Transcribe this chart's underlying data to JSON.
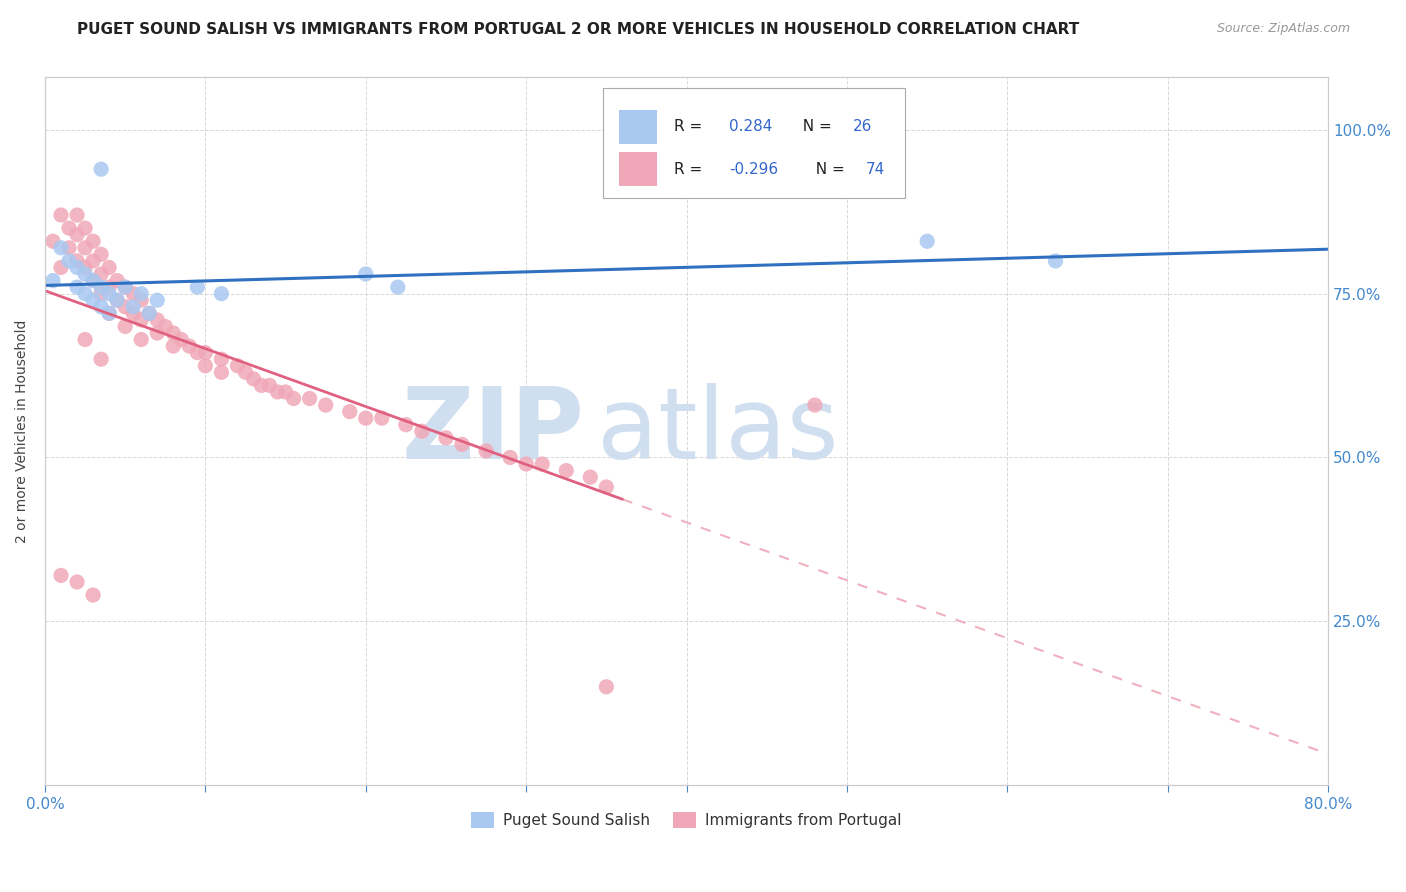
{
  "title": "PUGET SOUND SALISH VS IMMIGRANTS FROM PORTUGAL 2 OR MORE VEHICLES IN HOUSEHOLD CORRELATION CHART",
  "source": "Source: ZipAtlas.com",
  "ylabel": "2 or more Vehicles in Household",
  "xmin": 0.0,
  "xmax": 0.8,
  "ymin": 0.0,
  "ymax": 1.08,
  "yticks": [
    0.25,
    0.5,
    0.75,
    1.0
  ],
  "ytick_labels": [
    "25.0%",
    "50.0%",
    "75.0%",
    "100.0%"
  ],
  "blue_color": "#a8c8f0",
  "pink_color": "#f0a8b8",
  "blue_line_color": "#3070c0",
  "pink_line_color": "#e06080",
  "pink_dash_color": "#f0b0c0",
  "watermark_zip": "ZIP",
  "watermark_atlas": "atlas",
  "watermark_color": "#d0dff0",
  "blue_x": [
    0.005,
    0.01,
    0.015,
    0.02,
    0.02,
    0.025,
    0.025,
    0.03,
    0.03,
    0.035,
    0.035,
    0.04,
    0.04,
    0.045,
    0.05,
    0.055,
    0.06,
    0.065,
    0.07,
    0.095,
    0.11,
    0.2,
    0.22,
    0.55,
    0.63,
    0.035
  ],
  "blue_y": [
    0.77,
    0.82,
    0.8,
    0.79,
    0.76,
    0.78,
    0.75,
    0.77,
    0.74,
    0.76,
    0.73,
    0.75,
    0.72,
    0.74,
    0.76,
    0.73,
    0.75,
    0.72,
    0.74,
    0.76,
    0.75,
    0.78,
    0.76,
    0.83,
    0.8,
    0.94
  ],
  "pink_x": [
    0.005,
    0.01,
    0.01,
    0.015,
    0.015,
    0.02,
    0.02,
    0.02,
    0.025,
    0.025,
    0.025,
    0.03,
    0.03,
    0.03,
    0.035,
    0.035,
    0.035,
    0.04,
    0.04,
    0.045,
    0.045,
    0.05,
    0.05,
    0.055,
    0.055,
    0.06,
    0.06,
    0.065,
    0.07,
    0.07,
    0.075,
    0.08,
    0.08,
    0.085,
    0.09,
    0.095,
    0.1,
    0.1,
    0.11,
    0.11,
    0.12,
    0.125,
    0.13,
    0.135,
    0.14,
    0.145,
    0.15,
    0.155,
    0.165,
    0.175,
    0.19,
    0.2,
    0.21,
    0.225,
    0.235,
    0.25,
    0.26,
    0.275,
    0.29,
    0.3,
    0.31,
    0.325,
    0.34,
    0.35,
    0.01,
    0.02,
    0.03,
    0.025,
    0.035,
    0.04,
    0.05,
    0.06,
    0.48,
    0.35
  ],
  "pink_y": [
    0.83,
    0.79,
    0.87,
    0.85,
    0.82,
    0.87,
    0.84,
    0.8,
    0.85,
    0.82,
    0.79,
    0.83,
    0.8,
    0.77,
    0.81,
    0.78,
    0.75,
    0.79,
    0.76,
    0.77,
    0.74,
    0.76,
    0.73,
    0.75,
    0.72,
    0.74,
    0.71,
    0.72,
    0.71,
    0.69,
    0.7,
    0.69,
    0.67,
    0.68,
    0.67,
    0.66,
    0.66,
    0.64,
    0.65,
    0.63,
    0.64,
    0.63,
    0.62,
    0.61,
    0.61,
    0.6,
    0.6,
    0.59,
    0.59,
    0.58,
    0.57,
    0.56,
    0.56,
    0.55,
    0.54,
    0.53,
    0.52,
    0.51,
    0.5,
    0.49,
    0.49,
    0.48,
    0.47,
    0.455,
    0.32,
    0.31,
    0.29,
    0.68,
    0.65,
    0.72,
    0.7,
    0.68,
    0.58,
    0.15
  ]
}
